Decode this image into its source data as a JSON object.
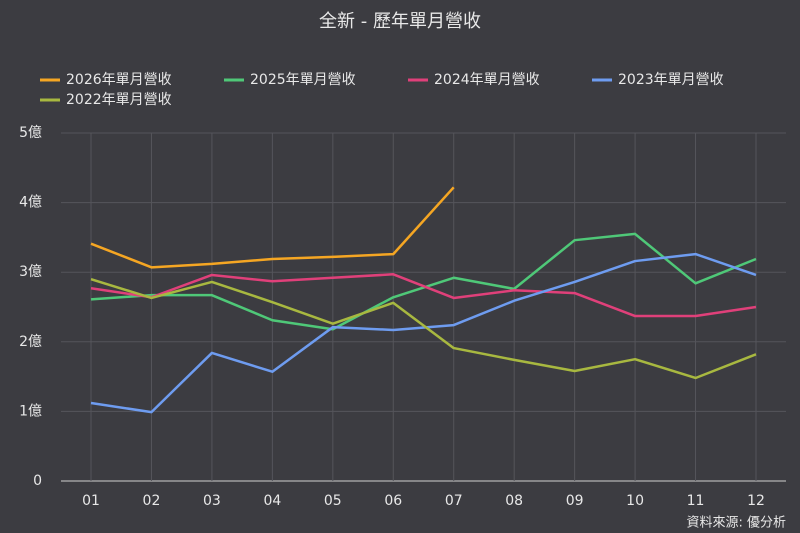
{
  "chart_data": {
    "type": "line",
    "title": "全新 - 歷年單月營收",
    "categories": [
      "01",
      "02",
      "03",
      "04",
      "05",
      "06",
      "07",
      "08",
      "09",
      "10",
      "11",
      "12"
    ],
    "series": [
      {
        "name": "2026年單月營收",
        "color": "#f5a623",
        "values": [
          3.41,
          3.07,
          3.12,
          3.19,
          3.22,
          3.26,
          4.22,
          null,
          null,
          null,
          null,
          null
        ]
      },
      {
        "name": "2025年單月營收",
        "color": "#4fc878",
        "values": [
          2.61,
          2.67,
          2.67,
          2.31,
          2.18,
          2.64,
          2.92,
          2.76,
          3.46,
          3.55,
          2.84,
          3.19
        ]
      },
      {
        "name": "2024年單月營收",
        "color": "#e0407a",
        "values": [
          2.77,
          2.64,
          2.96,
          2.87,
          2.92,
          2.97,
          2.63,
          2.74,
          2.7,
          2.37,
          2.37,
          2.5
        ]
      },
      {
        "name": "2023年單月營收",
        "color": "#6e9cf0",
        "values": [
          1.12,
          0.99,
          1.84,
          1.57,
          2.21,
          2.17,
          2.24,
          2.59,
          2.86,
          3.16,
          3.26,
          2.96
        ]
      },
      {
        "name": "2022年單月營收",
        "color": "#a8b840",
        "values": [
          2.9,
          2.63,
          2.86,
          2.57,
          2.26,
          2.56,
          1.91,
          1.74,
          1.58,
          1.75,
          1.48,
          1.82
        ]
      }
    ],
    "ylim": [
      0,
      5
    ],
    "yticks": [
      0,
      {
        "value": 1,
        "label": "1億"
      },
      {
        "value": 2,
        "label": "2億"
      },
      {
        "value": 3,
        "label": "3億"
      },
      {
        "value": 4,
        "label": "4億"
      },
      {
        "value": 5,
        "label": "5億"
      }
    ],
    "grid": true,
    "legend": "top",
    "source": "資料來源: 優分析"
  }
}
